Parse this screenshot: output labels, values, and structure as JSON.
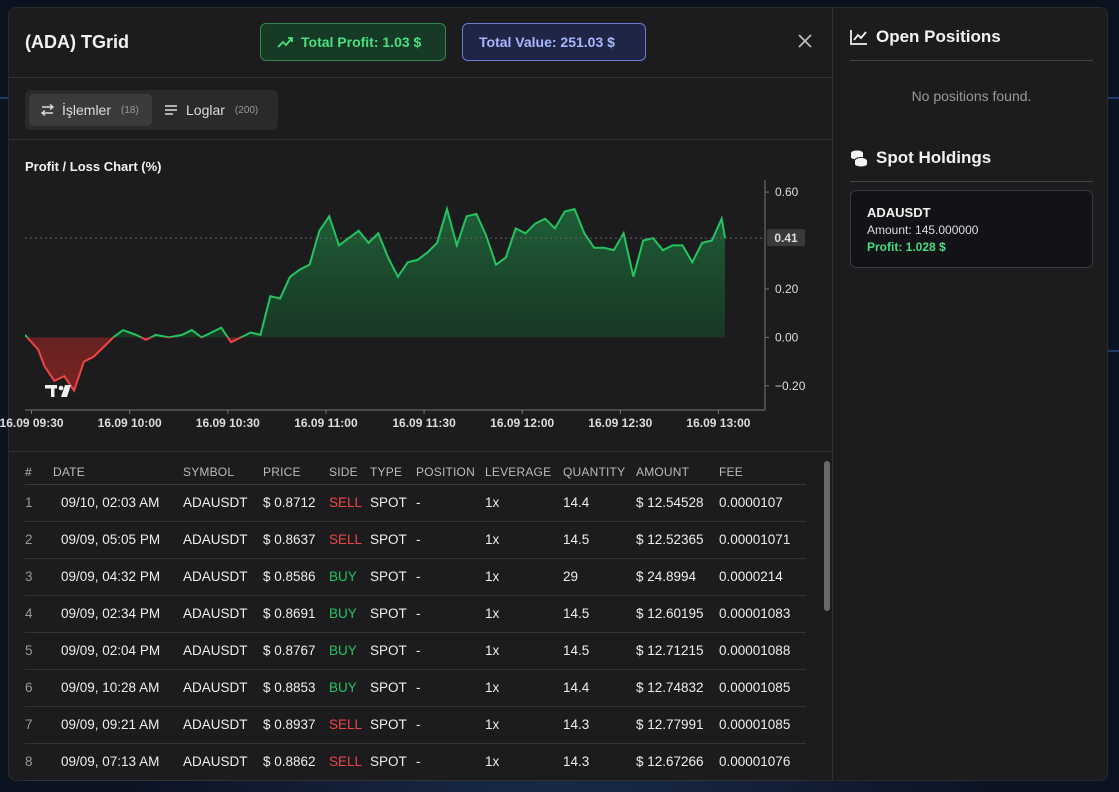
{
  "header": {
    "title": "(ADA) TGrid",
    "total_profit": "Total Profit: 1.03 $",
    "total_value": "Total Value: 251.03 $"
  },
  "tabs": [
    {
      "label": "İşlemler",
      "count": "(18)",
      "active": true
    },
    {
      "label": "Loglar",
      "count": "(200)",
      "active": false
    }
  ],
  "chart": {
    "title": "Profit / Loss Chart (%)",
    "current_value": "0.41",
    "y_ticks": [
      "0.60",
      "0.20",
      "0.00",
      "−0.20"
    ],
    "x_ticks": [
      "16.09 09:30",
      "16.09 10:00",
      "16.09 10:30",
      "16.09 11:00",
      "16.09 11:30",
      "16.09 12:00",
      "16.09 12:30",
      "16.09 13:00"
    ]
  },
  "chart_data": {
    "type": "area",
    "ylim": [
      -0.3,
      0.65
    ],
    "y_ticks": [
      0.6,
      0.41,
      0.2,
      0.0,
      -0.2
    ],
    "current": 0.41,
    "x_ticks": [
      "16.09 09:30",
      "16.09 10:00",
      "16.09 10:30",
      "16.09 11:00",
      "16.09 11:30",
      "16.09 12:00",
      "16.09 12:30",
      "16.09 13:00"
    ],
    "x_range": [
      "16.09 09:28",
      "16.09 13:02"
    ],
    "x_tick_values": [
      2,
      32,
      62,
      92,
      122,
      152,
      182,
      212
    ],
    "x": [
      0,
      4,
      6,
      9,
      12,
      15,
      18,
      21,
      24,
      27,
      30,
      34,
      37,
      40,
      44,
      48,
      51,
      54,
      57,
      60,
      63,
      66,
      69,
      72,
      75,
      78,
      81,
      84,
      87,
      90,
      93,
      96,
      99,
      102,
      105,
      108,
      111,
      114,
      117,
      120,
      123,
      126,
      129,
      132,
      135,
      138,
      141,
      144,
      147,
      150,
      153,
      156,
      159,
      162,
      165,
      168,
      171,
      174,
      177,
      180,
      183,
      186,
      189,
      192,
      195,
      198,
      201,
      204,
      207,
      210,
      213,
      214
    ],
    "y": [
      0.01,
      -0.05,
      -0.12,
      -0.18,
      -0.16,
      -0.22,
      -0.1,
      -0.08,
      -0.04,
      0.0,
      0.03,
      0.01,
      -0.01,
      0.01,
      0.0,
      0.01,
      0.03,
      0.0,
      0.02,
      0.04,
      -0.02,
      0.0,
      0.02,
      0.01,
      0.17,
      0.16,
      0.25,
      0.28,
      0.3,
      0.44,
      0.5,
      0.38,
      0.41,
      0.44,
      0.39,
      0.43,
      0.33,
      0.25,
      0.31,
      0.32,
      0.35,
      0.39,
      0.53,
      0.38,
      0.5,
      0.51,
      0.42,
      0.3,
      0.33,
      0.45,
      0.43,
      0.47,
      0.49,
      0.45,
      0.52,
      0.53,
      0.43,
      0.37,
      0.37,
      0.36,
      0.43,
      0.25,
      0.4,
      0.41,
      0.36,
      0.38,
      0.38,
      0.31,
      0.39,
      0.4,
      0.49,
      0.41
    ]
  },
  "table": {
    "columns": [
      "#",
      "DATE",
      "SYMBOL",
      "PRICE",
      "SIDE",
      "TYPE",
      "POSITION",
      "LEVERAGE",
      "QUANTITY",
      "AMOUNT",
      "FEE"
    ],
    "rows": [
      [
        "1",
        "09/10, 02:03 AM",
        "ADAUSDT",
        "$ 0.8712",
        "SELL",
        "SPOT",
        "-",
        "1x",
        "14.4",
        "$ 12.54528",
        "0.0000107"
      ],
      [
        "2",
        "09/09, 05:05 PM",
        "ADAUSDT",
        "$ 0.8637",
        "SELL",
        "SPOT",
        "-",
        "1x",
        "14.5",
        "$ 12.52365",
        "0.00001071"
      ],
      [
        "3",
        "09/09, 04:32 PM",
        "ADAUSDT",
        "$ 0.8586",
        "BUY",
        "SPOT",
        "-",
        "1x",
        "29",
        "$ 24.8994",
        "0.0000214"
      ],
      [
        "4",
        "09/09, 02:34 PM",
        "ADAUSDT",
        "$ 0.8691",
        "BUY",
        "SPOT",
        "-",
        "1x",
        "14.5",
        "$ 12.60195",
        "0.00001083"
      ],
      [
        "5",
        "09/09, 02:04 PM",
        "ADAUSDT",
        "$ 0.8767",
        "BUY",
        "SPOT",
        "-",
        "1x",
        "14.5",
        "$ 12.71215",
        "0.00001088"
      ],
      [
        "6",
        "09/09, 10:28 AM",
        "ADAUSDT",
        "$ 0.8853",
        "BUY",
        "SPOT",
        "-",
        "1x",
        "14.4",
        "$ 12.74832",
        "0.00001085"
      ],
      [
        "7",
        "09/09, 09:21 AM",
        "ADAUSDT",
        "$ 0.8937",
        "SELL",
        "SPOT",
        "-",
        "1x",
        "14.3",
        "$ 12.77991",
        "0.00001085"
      ],
      [
        "8",
        "09/09, 07:13 AM",
        "ADAUSDT",
        "$ 0.8862",
        "SELL",
        "SPOT",
        "-",
        "1x",
        "14.3",
        "$ 12.67266",
        "0.00001076"
      ]
    ]
  },
  "open_positions": {
    "title": "Open Positions",
    "empty_text": "No positions found."
  },
  "spot_holdings": {
    "title": "Spot Holdings",
    "symbol": "ADAUSDT",
    "amount": "Amount: 145.000000",
    "profit": "Profit: 1.028 $"
  },
  "colors": {
    "profit": "#22c55e",
    "loss": "#ef4444",
    "accent_blue": "#6b7bd6"
  }
}
